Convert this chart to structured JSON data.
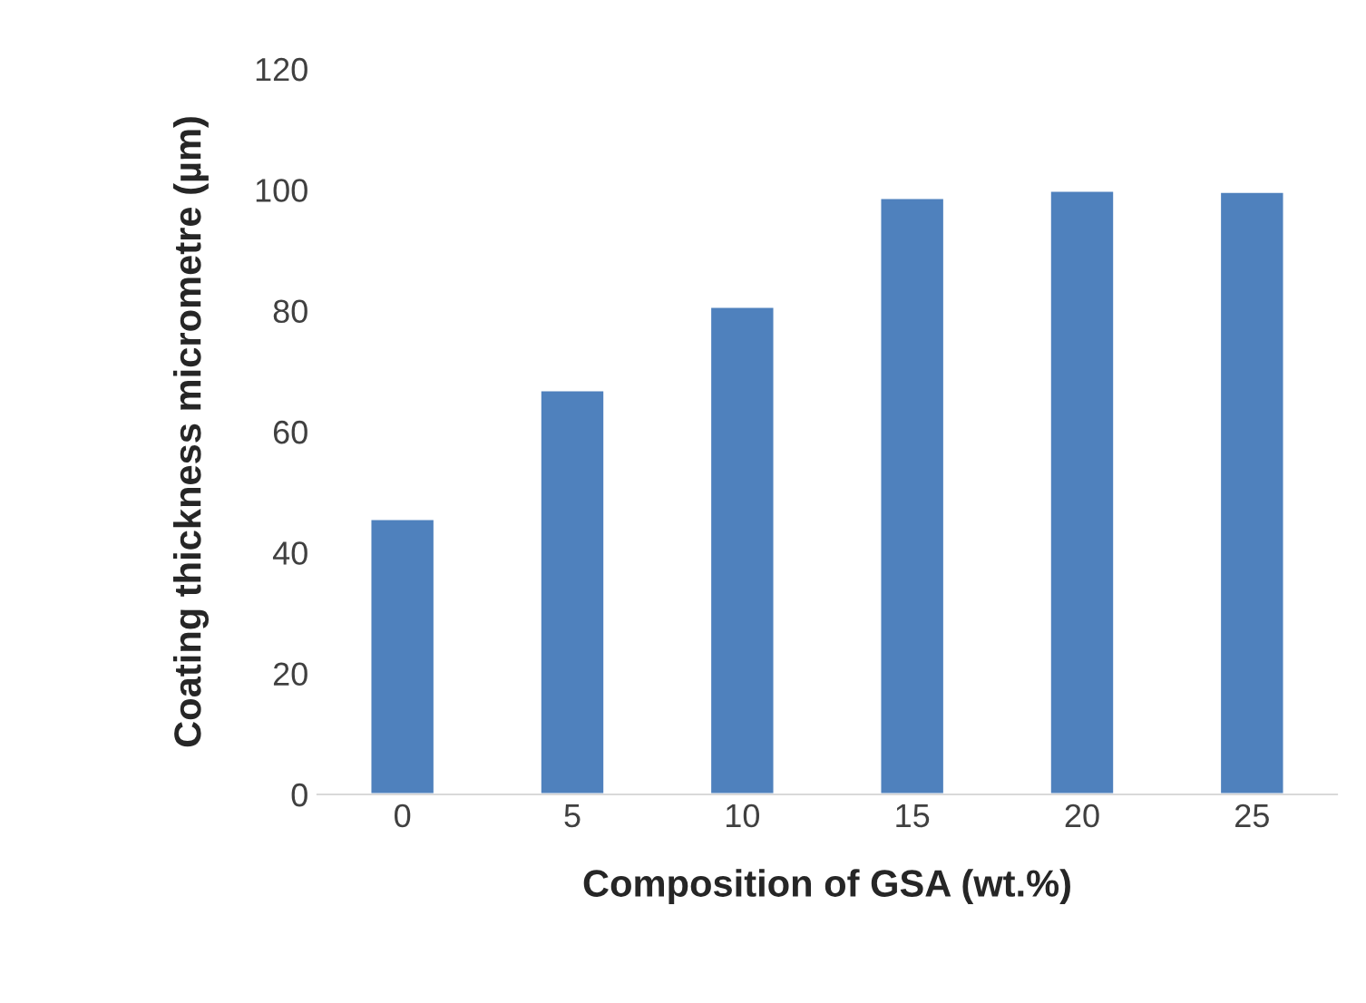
{
  "chart_data": {
    "type": "bar",
    "xlabel": "Composition of GSA (wt.%)",
    "ylabel": "Coating thickness micrometre (µm)",
    "categories": [
      "0",
      "5",
      "10",
      "15",
      "20",
      "25"
    ],
    "values": [
      45.6,
      66.9,
      80.7,
      98.7,
      99.9,
      99.7
    ],
    "color": "#4f81bd",
    "ylim": [
      0,
      120
    ],
    "yticks": [
      0,
      20,
      40,
      60,
      80,
      100,
      120
    ],
    "grid": false,
    "legend": false
  }
}
